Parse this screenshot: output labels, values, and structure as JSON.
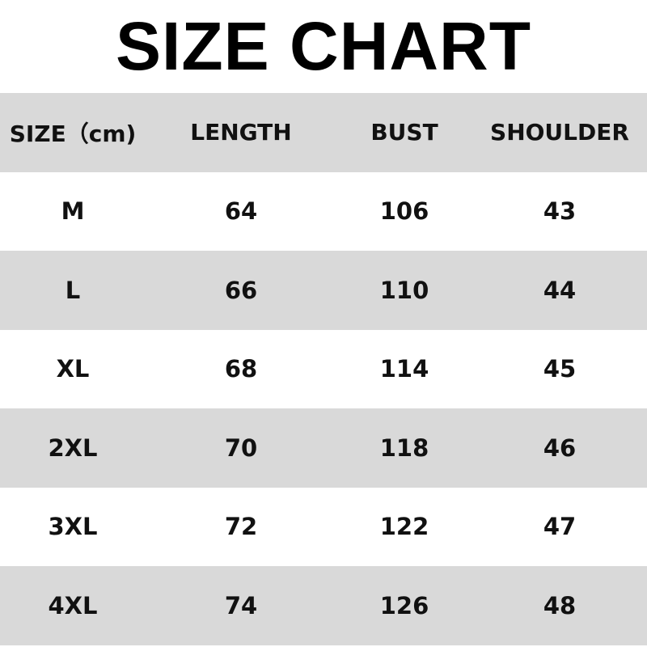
{
  "title": "SIZE CHART",
  "colors": {
    "stripe": "#d9d9d9",
    "background": "#ffffff",
    "text": "#000000"
  },
  "headers": [
    "SIZE（cm)",
    "LENGTH",
    "BUST",
    "SHOULDER"
  ],
  "rows": [
    [
      "M",
      "64",
      "106",
      "43"
    ],
    [
      "L",
      "66",
      "110",
      "44"
    ],
    [
      "XL",
      "68",
      "114",
      "45"
    ],
    [
      "2XL",
      "70",
      "118",
      "46"
    ],
    [
      "3XL",
      "72",
      "122",
      "47"
    ],
    [
      "4XL",
      "74",
      "126",
      "48"
    ]
  ]
}
